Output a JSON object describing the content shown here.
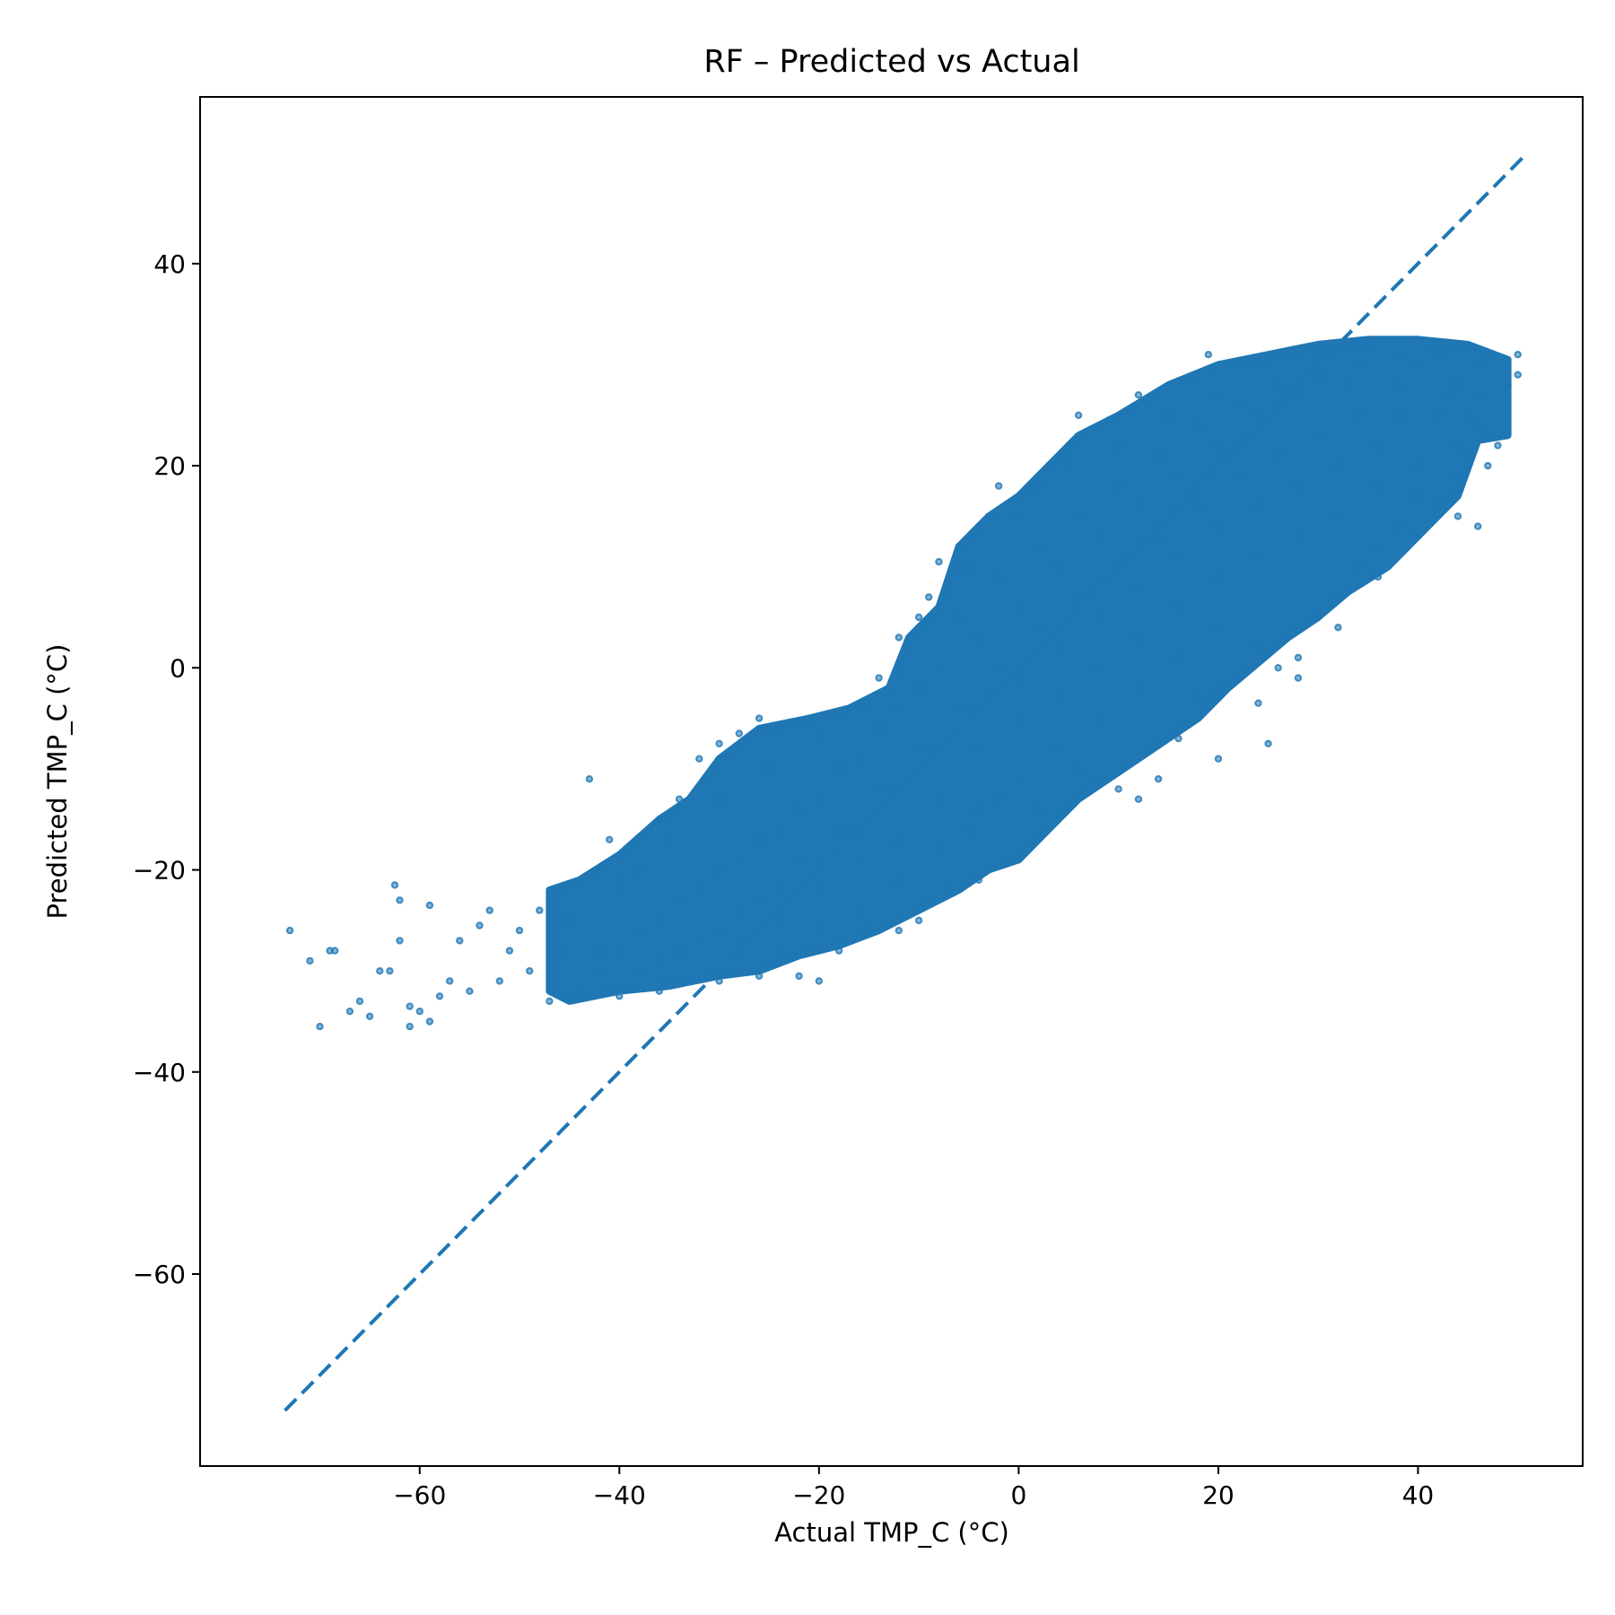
{
  "chart_data": {
    "type": "scatter",
    "title": "RF – Predicted vs Actual",
    "xlabel": "Actual TMP_C (°C)",
    "ylabel": "Predicted TMP_C (°C)",
    "xlim": [
      -82,
      56.5
    ],
    "ylim": [
      -79,
      56.5
    ],
    "xticks": [
      -60,
      -40,
      -20,
      0,
      20,
      40
    ],
    "yticks": [
      -60,
      -40,
      -20,
      0,
      20,
      40
    ],
    "xtick_labels": [
      "−60",
      "−40",
      "−20",
      "0",
      "20",
      "40"
    ],
    "ytick_labels": [
      "−60",
      "−40",
      "−20",
      "0",
      "20",
      "40"
    ],
    "grid": false,
    "colors": {
      "points": "#1f77b4",
      "reference_line": "#1f77b4"
    },
    "reference_line": {
      "style": "dashed",
      "from": [
        -73.5,
        -73.5
      ],
      "to": [
        50.5,
        50.5
      ]
    },
    "series": [
      {
        "points": [
          [
            -73,
            -26
          ],
          [
            -71,
            -29
          ],
          [
            -70,
            -35.5
          ],
          [
            -69,
            -28
          ],
          [
            -68.5,
            -28
          ],
          [
            -67,
            -34
          ],
          [
            -66,
            -33
          ],
          [
            -65,
            -34.5
          ],
          [
            -64,
            -30
          ],
          [
            -63,
            -30
          ],
          [
            -62.5,
            -21.5
          ],
          [
            -62,
            -23
          ],
          [
            -62,
            -27
          ],
          [
            -61,
            -33.5
          ],
          [
            -61,
            -35.5
          ],
          [
            -60,
            -34
          ],
          [
            -59,
            -23.5
          ],
          [
            -59,
            -35
          ],
          [
            -58,
            -32.5
          ],
          [
            -57,
            -31
          ],
          [
            -56,
            -27
          ],
          [
            -55,
            -32
          ],
          [
            -54,
            -25.5
          ],
          [
            -53,
            -24
          ],
          [
            -52,
            -31
          ],
          [
            -51,
            -28
          ],
          [
            -50,
            -26
          ],
          [
            -49,
            -30
          ],
          [
            -48,
            -24
          ],
          [
            -47,
            -33
          ],
          [
            -46,
            -28
          ],
          [
            -43,
            -11
          ],
          [
            -42,
            -20
          ],
          [
            -41,
            -17
          ],
          [
            -40,
            -21
          ],
          [
            -38,
            -20
          ],
          [
            -36,
            -15
          ],
          [
            -34,
            -13
          ],
          [
            -32,
            -9
          ],
          [
            -30,
            -7.5
          ],
          [
            -28,
            -6.5
          ],
          [
            -26,
            -5
          ],
          [
            -30,
            -31
          ],
          [
            -26,
            -30.5
          ],
          [
            -22,
            -30.5
          ],
          [
            -20,
            -31
          ],
          [
            -18,
            -28
          ],
          [
            -15,
            -26
          ],
          [
            -12,
            -26
          ],
          [
            -10,
            -25
          ],
          [
            -7,
            -22
          ],
          [
            -4,
            -21
          ],
          [
            -14,
            -1
          ],
          [
            -12,
            3
          ],
          [
            -9,
            7
          ],
          [
            -8,
            10.5
          ],
          [
            -6,
            12
          ],
          [
            -4,
            14
          ],
          [
            -3,
            15
          ],
          [
            0,
            17
          ],
          [
            -2,
            18
          ],
          [
            2,
            18
          ],
          [
            3,
            20
          ],
          [
            5,
            22
          ],
          [
            6,
            25
          ],
          [
            9,
            24.5
          ],
          [
            12,
            27
          ],
          [
            18,
            29
          ],
          [
            19,
            31
          ],
          [
            -5,
            -16
          ],
          [
            -2,
            -13
          ],
          [
            2,
            -14
          ],
          [
            6,
            -10
          ],
          [
            8,
            -11
          ],
          [
            10,
            -12
          ],
          [
            12,
            -13
          ],
          [
            14,
            -11
          ],
          [
            16,
            -7
          ],
          [
            20,
            -9
          ],
          [
            24,
            -3.5
          ],
          [
            25,
            -7.5
          ],
          [
            18,
            -3
          ],
          [
            20,
            -2
          ],
          [
            22,
            -1
          ],
          [
            26,
            0
          ],
          [
            28,
            1
          ],
          [
            30,
            5
          ],
          [
            32,
            7
          ],
          [
            34,
            10
          ],
          [
            36,
            12
          ],
          [
            38,
            14
          ],
          [
            40,
            17
          ],
          [
            42,
            16
          ],
          [
            44,
            15
          ],
          [
            46,
            14
          ],
          [
            47,
            20
          ],
          [
            48,
            22
          ],
          [
            49,
            28
          ],
          [
            50,
            31
          ],
          [
            50,
            29
          ],
          [
            45,
            25
          ],
          [
            40,
            30
          ],
          [
            35,
            32
          ],
          [
            30,
            31.5
          ],
          [
            25,
            30.5
          ],
          [
            22,
            30
          ],
          [
            20,
            27
          ],
          [
            15,
            25
          ],
          [
            10,
            22
          ],
          [
            5,
            20
          ],
          [
            0,
            15
          ],
          [
            -5,
            10
          ],
          [
            -10,
            5
          ],
          [
            -15,
            -4
          ],
          [
            -20,
            -7
          ],
          [
            -25,
            -10
          ],
          [
            -30,
            -13
          ],
          [
            -35,
            -17
          ],
          [
            -40,
            -22
          ],
          [
            -45,
            -25
          ],
          [
            -44,
            -32
          ],
          [
            -40,
            -32.5
          ],
          [
            -36,
            -32
          ],
          [
            -33,
            -31
          ],
          [
            -28,
            -27
          ],
          [
            -24,
            -25
          ],
          [
            -20,
            -22
          ],
          [
            -16,
            -19
          ],
          [
            -12,
            -17
          ],
          [
            -8,
            -13
          ],
          [
            -4,
            -8
          ],
          [
            0,
            -5
          ],
          [
            4,
            -3
          ],
          [
            8,
            0
          ],
          [
            12,
            3
          ],
          [
            16,
            6
          ],
          [
            20,
            9
          ],
          [
            24,
            11
          ],
          [
            28,
            13
          ],
          [
            32,
            15
          ],
          [
            36,
            18
          ],
          [
            40,
            20
          ],
          [
            44,
            22
          ],
          [
            46,
            24
          ],
          [
            43,
            27
          ],
          [
            38,
            28
          ],
          [
            33,
            28
          ],
          [
            28,
            27
          ],
          [
            24,
            25
          ],
          [
            20,
            22
          ],
          [
            16,
            19
          ],
          [
            12,
            16
          ],
          [
            8,
            13
          ],
          [
            4,
            10
          ],
          [
            0,
            6
          ],
          [
            -4,
            3
          ],
          [
            -8,
            0
          ],
          [
            -12,
            -4
          ],
          [
            -16,
            -9
          ],
          [
            -20,
            -13
          ],
          [
            -24,
            -16
          ],
          [
            -28,
            -19
          ],
          [
            -32,
            -22
          ],
          [
            -36,
            -25
          ],
          [
            -40,
            -28
          ],
          [
            -42,
            -30
          ],
          [
            -38,
            -30
          ],
          [
            -34,
            -28
          ],
          [
            -30,
            -26
          ],
          [
            -26,
            -23
          ],
          [
            -22,
            -19
          ],
          [
            -18,
            -16
          ],
          [
            -14,
            -12
          ],
          [
            -10,
            -8
          ],
          [
            -6,
            -4
          ],
          [
            -2,
            0
          ],
          [
            2,
            4
          ],
          [
            6,
            7
          ],
          [
            10,
            10
          ],
          [
            14,
            13
          ],
          [
            18,
            16
          ],
          [
            22,
            19
          ],
          [
            26,
            21
          ],
          [
            30,
            23
          ],
          [
            34,
            25
          ],
          [
            38,
            25
          ],
          [
            42,
            25
          ],
          [
            44,
            28
          ],
          [
            36,
            22
          ],
          [
            32,
            20
          ],
          [
            28,
            18
          ],
          [
            24,
            16
          ],
          [
            20,
            14
          ],
          [
            16,
            11
          ],
          [
            12,
            8
          ],
          [
            8,
            5
          ],
          [
            4,
            2
          ],
          [
            0,
            -1
          ],
          [
            -4,
            -4
          ],
          [
            -8,
            -8
          ],
          [
            -12,
            -12
          ],
          [
            -16,
            -16
          ],
          [
            -20,
            -19
          ],
          [
            -24,
            -22
          ],
          [
            -28,
            -24
          ],
          [
            -32,
            -27
          ],
          [
            -36,
            -29
          ],
          [
            -6,
            5
          ],
          [
            -2,
            9
          ],
          [
            2,
            12
          ],
          [
            6,
            15
          ],
          [
            10,
            18
          ],
          [
            14,
            21
          ],
          [
            18,
            24
          ],
          [
            22,
            26
          ],
          [
            26,
            28
          ],
          [
            30,
            29
          ],
          [
            34,
            30
          ],
          [
            38,
            31
          ],
          [
            42,
            31
          ],
          [
            46,
            30
          ],
          [
            46,
            27
          ],
          [
            44,
            19
          ],
          [
            40,
            13
          ],
          [
            36,
            9
          ],
          [
            32,
            4
          ],
          [
            28,
            -1
          ],
          [
            24,
            2
          ],
          [
            20,
            4
          ],
          [
            16,
            1
          ],
          [
            12,
            -2
          ],
          [
            8,
            -5
          ],
          [
            4,
            -8
          ],
          [
            0,
            -11
          ],
          [
            -4,
            -14
          ],
          [
            -8,
            -18
          ],
          [
            -12,
            -21
          ],
          [
            -16,
            -24
          ],
          [
            -20,
            -26
          ],
          [
            -24,
            -28
          ],
          [
            -10,
            -2
          ],
          [
            -14,
            -6
          ],
          [
            -18,
            -10
          ],
          [
            -22,
            -14
          ],
          [
            -26,
            -17
          ],
          [
            -30,
            -20
          ],
          [
            -34,
            -23
          ],
          [
            -38,
            -26
          ],
          [
            -42,
            -28
          ]
        ]
      }
    ]
  }
}
